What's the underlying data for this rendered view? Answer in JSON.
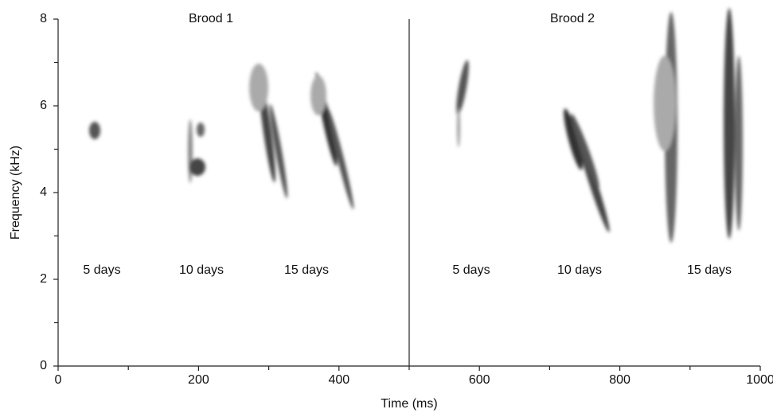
{
  "chart_data": {
    "type": "spectrogram",
    "xlabel": "Time (ms)",
    "ylabel": "Frequency (kHz)",
    "xlim": [
      0,
      1000
    ],
    "ylim": [
      0,
      8
    ],
    "xticks": [
      0,
      200,
      400,
      600,
      800,
      1000
    ],
    "yticks": [
      0,
      2,
      4,
      6,
      8
    ],
    "xminorticks": [
      100,
      300,
      500,
      700,
      900
    ],
    "yminorticks": [
      1,
      3,
      5,
      7
    ],
    "divider": 500,
    "panels": [
      {
        "title": "Brood 1",
        "labels": [
          "5 days",
          "10 days",
          "15 days"
        ]
      },
      {
        "title": "Brood 2",
        "labels": [
          "5 days",
          "10 days",
          "15 days"
        ]
      }
    ]
  }
}
